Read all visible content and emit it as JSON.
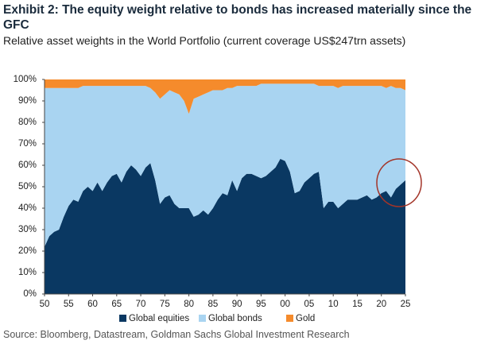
{
  "chart_data": {
    "type": "stacked_area",
    "title": "Exhibit 2: The equity weight relative to bonds has increased materially since the GFC",
    "subtitle": "Relative asset weights in the World Portfolio (current coverage US$247trn assets)",
    "source": "Source: Bloomberg, Datastream, Goldman Sachs Global Investment Research",
    "x": [
      1950,
      1951,
      1952,
      1953,
      1954,
      1955,
      1956,
      1957,
      1958,
      1959,
      1960,
      1961,
      1962,
      1963,
      1964,
      1965,
      1966,
      1967,
      1968,
      1969,
      1970,
      1971,
      1972,
      1973,
      1974,
      1975,
      1976,
      1977,
      1978,
      1979,
      1980,
      1981,
      1982,
      1983,
      1984,
      1985,
      1986,
      1987,
      1988,
      1989,
      1990,
      1991,
      1992,
      1993,
      1994,
      1995,
      1996,
      1997,
      1998,
      1999,
      2000,
      2001,
      2002,
      2003,
      2004,
      2005,
      2006,
      2007,
      2008,
      2009,
      2010,
      2011,
      2012,
      2013,
      2014,
      2015,
      2016,
      2017,
      2018,
      2019,
      2020,
      2021,
      2022,
      2023,
      2024,
      2025
    ],
    "series": [
      {
        "name": "Global equities",
        "color": "#0a3862",
        "values": [
          22,
          27,
          29,
          30,
          36,
          41,
          44,
          43,
          48,
          50,
          48,
          52,
          48,
          52,
          55,
          56,
          52,
          57,
          60,
          58,
          55,
          59,
          61,
          53,
          42,
          45,
          46,
          42,
          40,
          40,
          40,
          36,
          37,
          39,
          37,
          40,
          44,
          47,
          46,
          53,
          48,
          54,
          56,
          56,
          55,
          54,
          55,
          57,
          59,
          63,
          62,
          57,
          47,
          48,
          52,
          54,
          56,
          57,
          40,
          43,
          43,
          40,
          42,
          44,
          44,
          44,
          45,
          46,
          44,
          45,
          47,
          48,
          45,
          49,
          51,
          53
        ]
      },
      {
        "name": "Global bonds",
        "color": "#a9d4f1",
        "values": [
          74,
          69,
          67,
          66,
          60,
          55,
          52,
          53,
          49,
          47,
          49,
          45,
          49,
          45,
          42,
          41,
          45,
          40,
          37,
          39,
          42,
          38,
          35,
          41,
          49,
          48,
          49,
          52,
          53,
          50,
          44,
          55,
          55,
          54,
          57,
          55,
          51,
          48,
          50,
          43,
          49,
          43,
          41,
          41,
          42,
          44,
          43,
          41,
          39,
          35,
          36,
          41,
          51,
          50,
          46,
          44,
          42,
          40,
          57,
          54,
          54,
          56,
          55,
          53,
          53,
          53,
          52,
          51,
          53,
          52,
          50,
          48,
          52,
          47,
          45,
          42
        ]
      },
      {
        "name": "Gold",
        "color": "#f58b2c",
        "values": [
          4,
          4,
          4,
          4,
          4,
          4,
          4,
          4,
          3,
          3,
          3,
          3,
          3,
          3,
          3,
          3,
          3,
          3,
          3,
          3,
          3,
          3,
          4,
          6,
          9,
          7,
          5,
          6,
          7,
          10,
          16,
          9,
          8,
          7,
          6,
          5,
          5,
          5,
          4,
          4,
          3,
          3,
          3,
          3,
          3,
          2,
          2,
          2,
          2,
          2,
          2,
          2,
          2,
          2,
          2,
          2,
          2,
          3,
          3,
          3,
          3,
          4,
          3,
          3,
          3,
          3,
          3,
          3,
          3,
          3,
          3,
          4,
          3,
          4,
          4,
          5
        ]
      }
    ],
    "xlim": [
      1950,
      2025
    ],
    "xticks": [
      {
        "value": 1950,
        "label": "50"
      },
      {
        "value": 1955,
        "label": "55"
      },
      {
        "value": 1960,
        "label": "60"
      },
      {
        "value": 1965,
        "label": "65"
      },
      {
        "value": 1970,
        "label": "70"
      },
      {
        "value": 1975,
        "label": "75"
      },
      {
        "value": 1980,
        "label": "80"
      },
      {
        "value": 1985,
        "label": "85"
      },
      {
        "value": 1990,
        "label": "90"
      },
      {
        "value": 1995,
        "label": "95"
      },
      {
        "value": 2000,
        "label": "00"
      },
      {
        "value": 2005,
        "label": "05"
      },
      {
        "value": 2010,
        "label": "10"
      },
      {
        "value": 2015,
        "label": "15"
      },
      {
        "value": 2020,
        "label": "20"
      },
      {
        "value": 2025,
        "label": "25"
      }
    ],
    "ylim": [
      0,
      100
    ],
    "yticks": [
      {
        "value": 0,
        "label": "0%"
      },
      {
        "value": 10,
        "label": "10%"
      },
      {
        "value": 20,
        "label": "20%"
      },
      {
        "value": 30,
        "label": "30%"
      },
      {
        "value": 40,
        "label": "40%"
      },
      {
        "value": 50,
        "label": "50%"
      },
      {
        "value": 60,
        "label": "60%"
      },
      {
        "value": 70,
        "label": "70%"
      },
      {
        "value": 80,
        "label": "80%"
      },
      {
        "value": 90,
        "label": "90%"
      },
      {
        "value": 100,
        "label": "100%"
      }
    ]
  }
}
